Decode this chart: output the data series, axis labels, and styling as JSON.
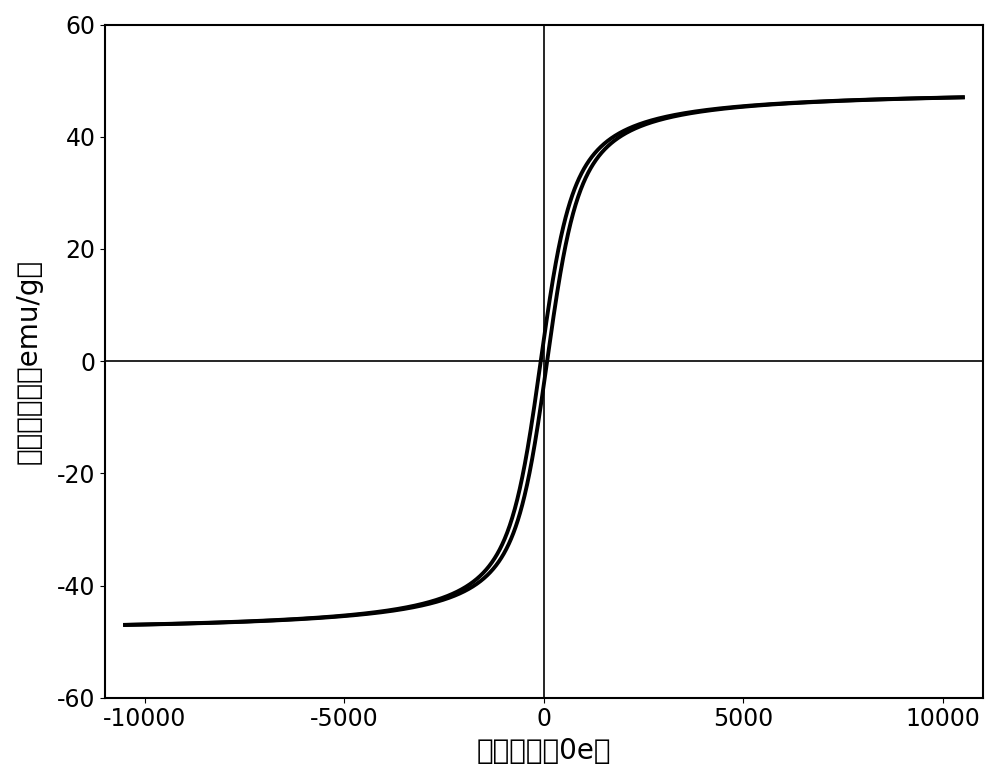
{
  "xlabel": "磁场强度（0e）",
  "ylabel": "磁感应强度（emu/g）",
  "xlim": [
    -11000,
    11000
  ],
  "ylim": [
    -60,
    60
  ],
  "xticks": [
    -10000,
    -5000,
    0,
    5000,
    10000
  ],
  "yticks": [
    -60,
    -40,
    -20,
    0,
    20,
    40,
    60
  ],
  "saturation_magnetization": 48.5,
  "curve_color": "#000000",
  "curve_linewidth": 2.8,
  "background_color": "#ffffff",
  "spine_linewidth": 1.5,
  "xlabel_fontsize": 20,
  "ylabel_fontsize": 20,
  "tick_fontsize": 17,
  "langevin_a": 320,
  "coercivity": 80
}
